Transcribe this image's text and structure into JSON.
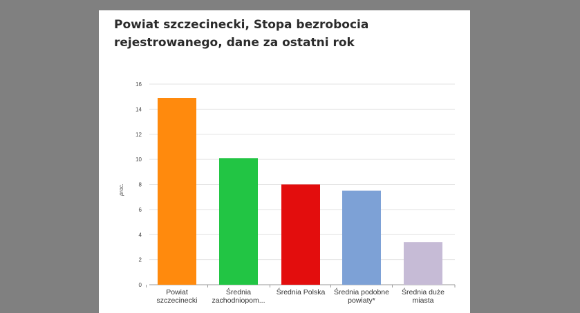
{
  "chart_data": {
    "type": "bar",
    "title_lines": [
      "Powiat szczecinecki, Stopa bezrobocia",
      "rejestrowanego, dane za ostatni rok"
    ],
    "title": "Powiat szczecinecki, Stopa bezrobocia rejestrowanego, dane za ostatni rok",
    "xlabel": "",
    "ylabel": "proc.",
    "ylim": [
      0,
      16
    ],
    "yticks": [
      0,
      2,
      4,
      6,
      8,
      10,
      12,
      14,
      16
    ],
    "grid": true,
    "categories": [
      [
        "Powiat",
        "szczecinecki"
      ],
      [
        "Średnia",
        "zachodniopom..."
      ],
      [
        "Średnia Polska"
      ],
      [
        "Średnia podobne",
        "powiaty*"
      ],
      [
        "Średnia duże",
        "miasta"
      ]
    ],
    "values": [
      14.9,
      10.1,
      8.0,
      7.5,
      3.4
    ],
    "colors": [
      "#ff8a0d",
      "#22c544",
      "#e30d0d",
      "#7da1d6",
      "#c6bbd6"
    ]
  }
}
